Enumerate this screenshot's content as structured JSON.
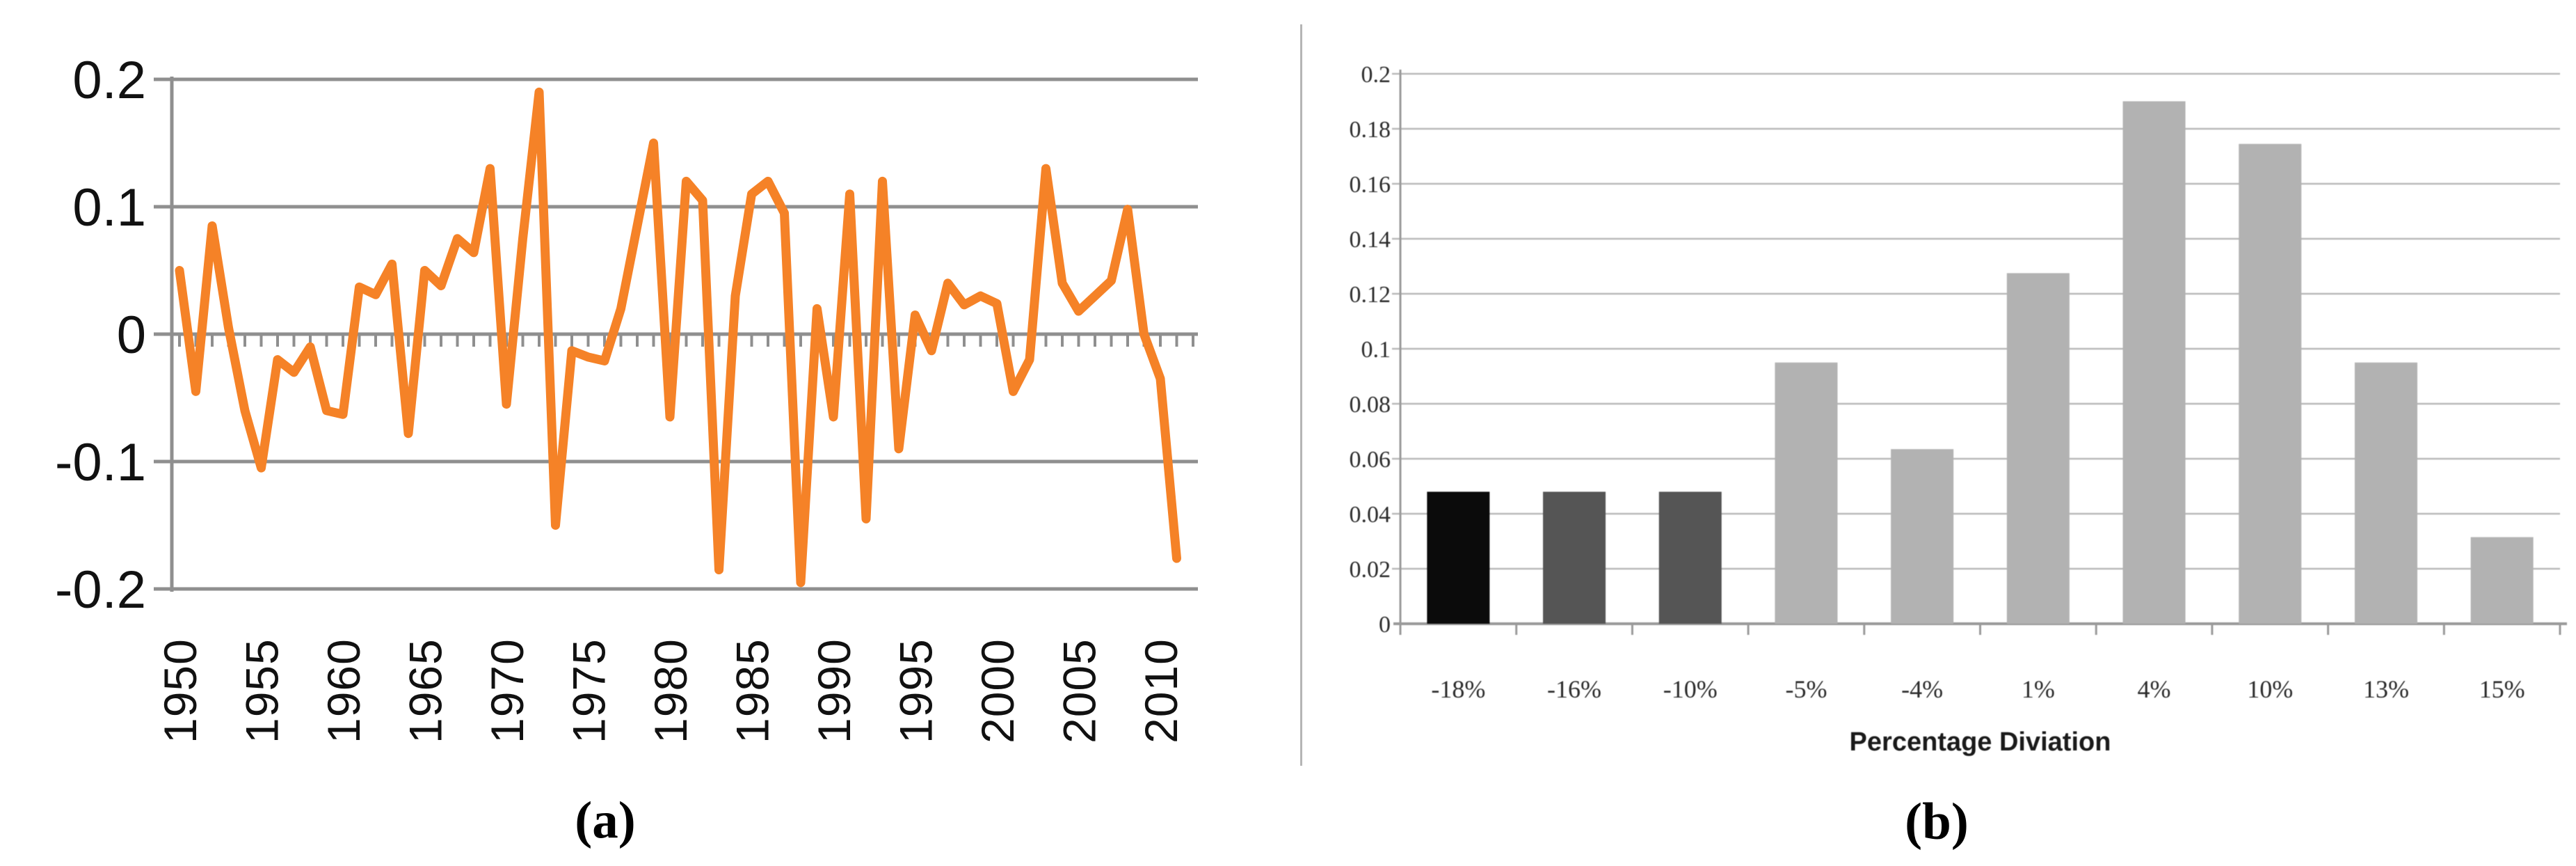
{
  "figure": {
    "panel_a": {
      "caption": "(a)"
    },
    "panel_b": {
      "caption": "(b)",
      "xlabel": "Percentage Diviation"
    }
  },
  "chart_data": [
    {
      "id": "a",
      "type": "line",
      "title": "",
      "xlabel": "",
      "ylabel": "",
      "ylim": [
        -0.2,
        0.2
      ],
      "grid": "horizontal",
      "legend": "none",
      "line_color": "#f58227",
      "grid_color": "#8f8f8f",
      "label_color": "#111111",
      "yticks": [
        0.2,
        0.1,
        0,
        -0.1,
        -0.2
      ],
      "ytick_labels": [
        "0.2",
        "0.1",
        "0",
        "-0.1",
        "-0.2"
      ],
      "xtick_label_years": [
        1950,
        1955,
        1960,
        1965,
        1970,
        1975,
        1980,
        1985,
        1990,
        1995,
        2000,
        2005,
        2010
      ],
      "axis_start_year": 1950,
      "axis_end_year": 2012,
      "x": [
        1950,
        1951,
        1952,
        1953,
        1954,
        1955,
        1956,
        1957,
        1958,
        1959,
        1960,
        1961,
        1962,
        1963,
        1964,
        1965,
        1966,
        1967,
        1968,
        1969,
        1970,
        1971,
        1972,
        1973,
        1974,
        1975,
        1976,
        1977,
        1978,
        1979,
        1980,
        1981,
        1982,
        1983,
        1984,
        1985,
        1986,
        1987,
        1988,
        1989,
        1990,
        1991,
        1992,
        1993,
        1994,
        1995,
        1996,
        1997,
        1998,
        1999,
        2000,
        2001,
        2002,
        2003,
        2004,
        2005,
        2006,
        2007,
        2008,
        2009,
        2010,
        2011
      ],
      "values": [
        0.05,
        -0.045,
        0.085,
        0.005,
        -0.06,
        -0.105,
        -0.02,
        -0.03,
        -0.01,
        -0.06,
        -0.063,
        0.037,
        0.031,
        0.055,
        -0.078,
        0.05,
        0.038,
        0.075,
        0.064,
        0.13,
        -0.055,
        0.075,
        0.19,
        -0.15,
        -0.013,
        -0.018,
        -0.021,
        0.02,
        0.085,
        0.15,
        -0.065,
        0.12,
        0.105,
        -0.185,
        0.03,
        0.11,
        0.12,
        0.095,
        -0.195,
        0.02,
        -0.065,
        0.11,
        -0.145,
        0.12,
        -0.09,
        0.015,
        -0.013,
        0.04,
        0.023,
        0.03,
        0.024,
        -0.045,
        -0.02,
        0.13,
        0.04,
        0.018,
        0.03,
        0.042,
        0.098,
        0.0,
        -0.035,
        -0.176
      ]
    },
    {
      "id": "b",
      "type": "bar",
      "title": "",
      "xlabel": "Percentage Diviation",
      "ylabel": "",
      "ylim": [
        0,
        0.2
      ],
      "grid": "horizontal",
      "legend": "none",
      "grid_color": "#b9b9b9",
      "axis_color": "#9a9a9a",
      "label_color": "#2b2b2b",
      "categories": [
        "-18%",
        "-16%",
        "-10%",
        "-5%",
        "-4%",
        "1%",
        "4%",
        "10%",
        "13%",
        "15%"
      ],
      "values": [
        0.048,
        0.048,
        0.048,
        0.095,
        0.0635,
        0.1275,
        0.19,
        0.1745,
        0.095,
        0.0315
      ],
      "bar_colors": [
        "#0b0b0b",
        "#555555",
        "#555555",
        "#b2b2b2",
        "#b2b2b2",
        "#b2b2b2",
        "#b2b2b2",
        "#b2b2b2",
        "#b2b2b2",
        "#b2b2b2"
      ],
      "yticks": [
        0.2,
        0.18,
        0.16,
        0.14,
        0.12,
        0.1,
        0.08,
        0.06,
        0.04,
        0.02,
        0
      ],
      "ytick_labels": [
        "0.2",
        "0.18",
        "0.16",
        "0.14",
        "0.12",
        "0.1",
        "0.08",
        "0.06",
        "0.04",
        "0.02",
        "0"
      ]
    }
  ]
}
